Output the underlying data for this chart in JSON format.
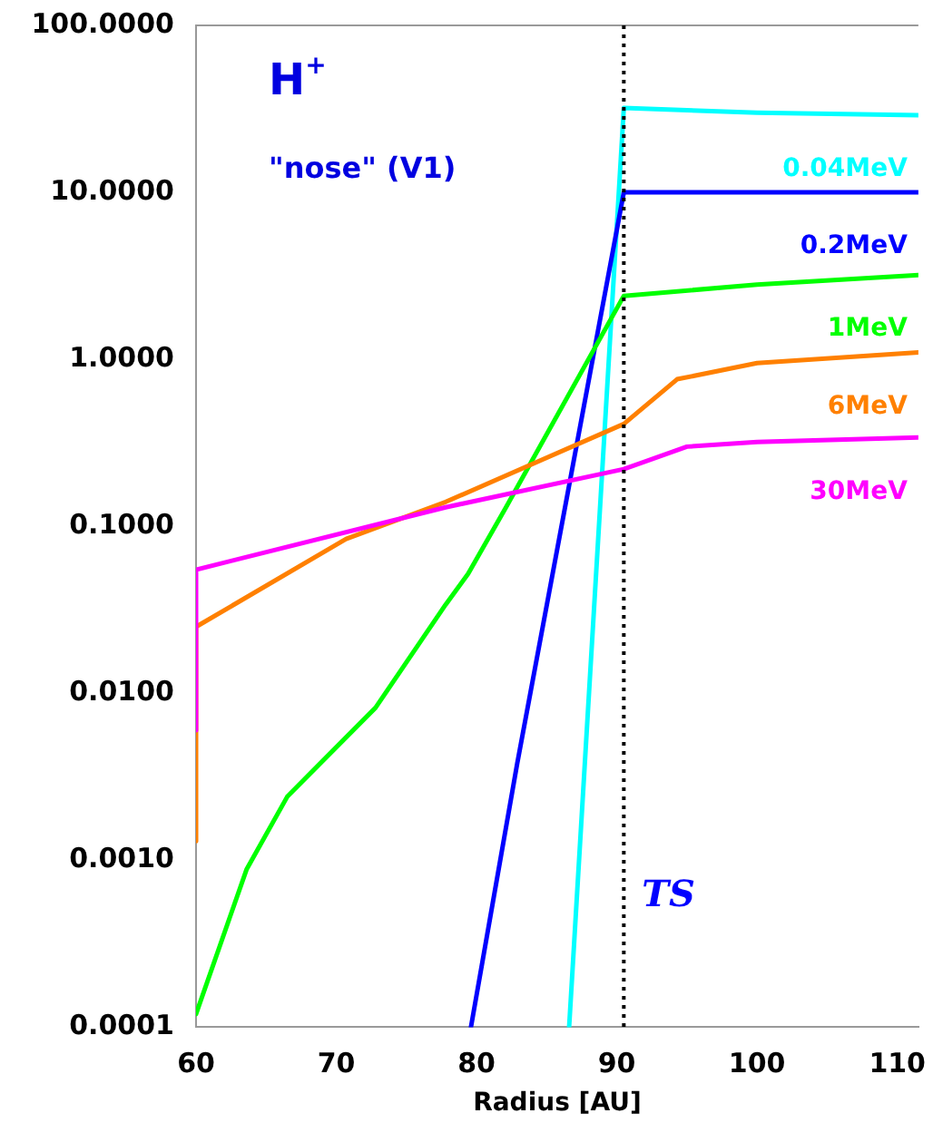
{
  "chart_data": {
    "type": "line",
    "xlabel": "Radius [AU]",
    "log": "y",
    "grid": false,
    "legend": false,
    "marker": "none",
    "line_style": "solid",
    "xlim": [
      60,
      111.5
    ],
    "xticks": [
      60,
      70,
      80,
      90,
      100,
      110
    ],
    "ylim": [
      0.0001,
      100
    ],
    "yticks": [
      {
        "value": 100,
        "label": "100.0000"
      },
      {
        "value": 10,
        "label": "10.0000"
      },
      {
        "value": 1,
        "label": "1.0000"
      },
      {
        "value": 0.1,
        "label": "0.1000"
      },
      {
        "value": 0.01,
        "label": "0.0100"
      },
      {
        "value": 0.001,
        "label": "0.0010"
      },
      {
        "value": 0.0001,
        "label": "0.0001"
      }
    ],
    "series": [
      {
        "name": "0.04MeV",
        "color": "#00ffff",
        "x": [
          86.6,
          90.5,
          100,
          111.5
        ],
        "values": [
          0.0001,
          32,
          30,
          29
        ]
      },
      {
        "name": "0.2MeV",
        "color": "#0000ff",
        "x": [
          79.6,
          82.9,
          90.5,
          111.5
        ],
        "values": [
          0.0001,
          0.0038,
          10,
          10
        ]
      },
      {
        "name": "1MeV",
        "color": "#00ff00",
        "x": [
          60,
          63.6,
          66.5,
          72.8,
          77.8,
          79.4,
          82.1,
          90.5,
          100,
          111.5
        ],
        "values": [
          0.00012,
          0.00088,
          0.0024,
          0.0082,
          0.034,
          0.052,
          0.13,
          2.4,
          2.8,
          3.2
        ]
      },
      {
        "name": "6MeV",
        "color": "#ff8000",
        "x": [
          60,
          60,
          70.7,
          77.8,
          90.5,
          94.3,
          100,
          111.5
        ],
        "values": [
          0.0013,
          0.025,
          0.084,
          0.14,
          0.41,
          0.76,
          0.95,
          1.1
        ]
      },
      {
        "name": "30MeV",
        "color": "#ff00ff",
        "x": [
          60,
          60,
          77.8,
          90.5,
          95,
          100,
          111.5
        ],
        "values": [
          0.006,
          0.055,
          0.13,
          0.22,
          0.3,
          0.32,
          0.34
        ]
      }
    ],
    "ref_lines": [
      {
        "axis": "x",
        "value": 90.5,
        "label": "TS",
        "color": "#000000",
        "line_style": "dotted"
      }
    ],
    "annotations": [
      "H$^{+}$",
      "\"nose\" (V1)"
    ]
  }
}
